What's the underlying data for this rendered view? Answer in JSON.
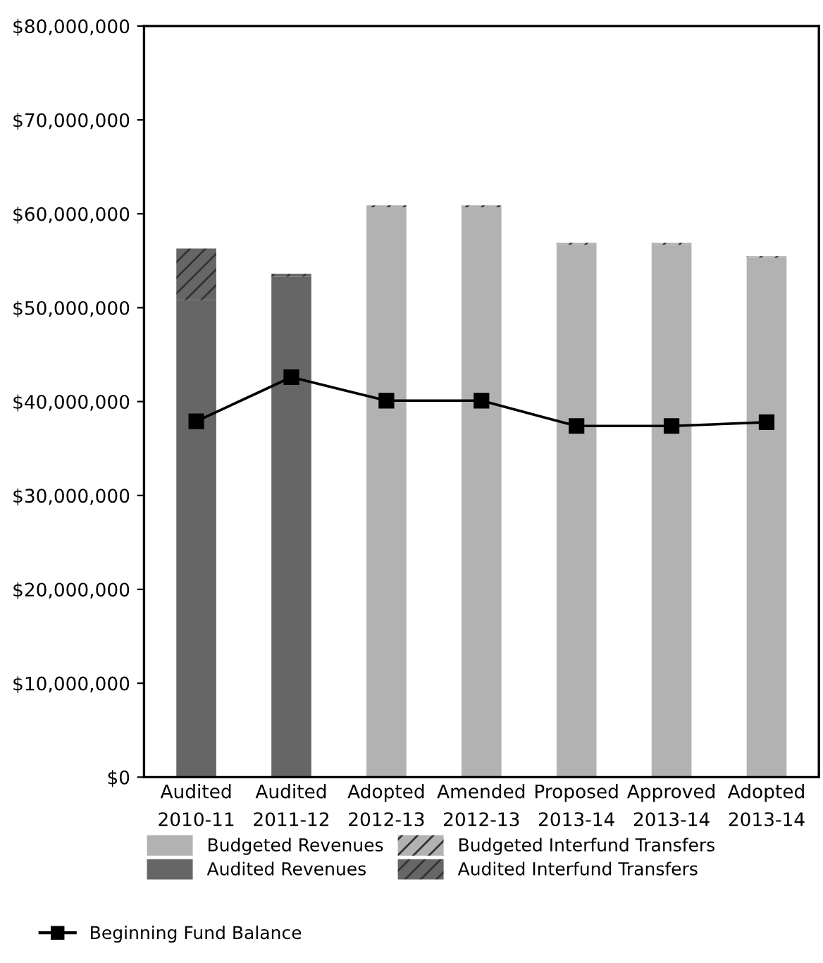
{
  "chart_data": {
    "type": "bar",
    "stacked": true,
    "categories": [
      "Audited\n2010-11",
      "Audited\n2011-12",
      "Adopted\n2012-13",
      "Amended\n2012-13",
      "Proposed\n2013-14",
      "Approved\n2013-14",
      "Adopted\n2013-14"
    ],
    "series": [
      {
        "name": "Budgeted Revenues",
        "color": "#b2b2b2",
        "values": [
          null,
          null,
          60700000,
          60700000,
          56700000,
          56700000,
          55300000
        ]
      },
      {
        "name": "Audited Revenues",
        "color": "#666666",
        "values": [
          50800000,
          53300000,
          null,
          null,
          null,
          null,
          null
        ]
      },
      {
        "name": "Budgeted Interfund Transfers",
        "color": "#b2b2b2",
        "values": [
          null,
          null,
          200000,
          200000,
          200000,
          200000,
          200000
        ]
      },
      {
        "name": "Audited Interfund Transfers",
        "color": "#666666",
        "values": [
          5500000,
          300000,
          null,
          null,
          null,
          null,
          null
        ]
      },
      {
        "name": "Beginning Fund Balance",
        "type": "line",
        "color": "#000000",
        "marker": "square",
        "values": [
          37900000,
          42600000,
          40100000,
          40100000,
          37400000,
          37400000,
          37800000
        ]
      }
    ],
    "ylim": [
      0,
      80000000
    ],
    "yticks": [
      {
        "value": 0,
        "label": "$0"
      },
      {
        "value": 10000000,
        "label": "$10,000,000"
      },
      {
        "value": 20000000,
        "label": "$20,000,000"
      },
      {
        "value": 30000000,
        "label": "$30,000,000"
      },
      {
        "value": 40000000,
        "label": "$40,000,000"
      },
      {
        "value": 50000000,
        "label": "$50,000,000"
      },
      {
        "value": 60000000,
        "label": "$60,000,000"
      },
      {
        "value": 70000000,
        "label": "$70,000,000"
      },
      {
        "value": 80000000,
        "label": "$80,000,000"
      }
    ],
    "grid": false,
    "legend": "bottom"
  }
}
